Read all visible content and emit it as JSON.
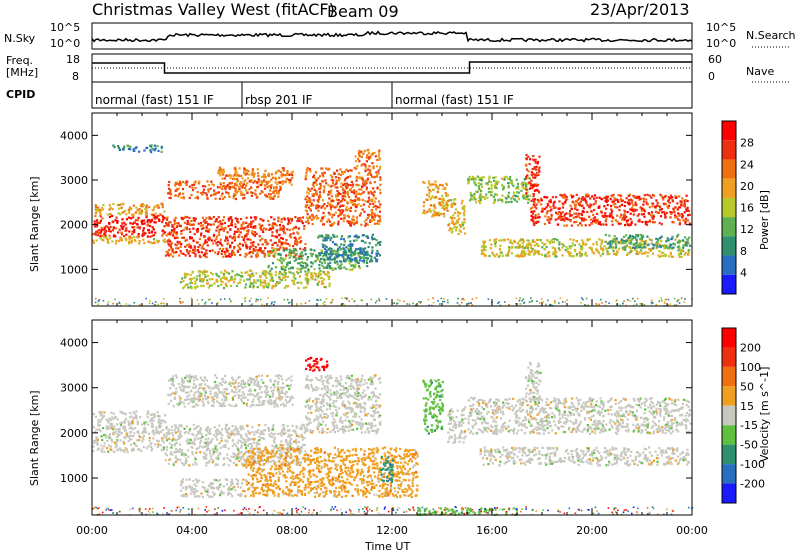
{
  "header": {
    "station": "Christmas Valley West (fitACF)",
    "beam": "Beam 09",
    "date": "23/Apr/2013"
  },
  "top_panels": {
    "nsky_label": "N.Sky",
    "nsearch_label": "N.Search",
    "nsky_ticks": [
      "10^5",
      "10^0"
    ],
    "nsearch_ticks": [
      "10^5",
      "10^0"
    ],
    "freq_label_1": "Freq.",
    "freq_label_2": "[MHz]",
    "freq_ticks": [
      "18",
      "8"
    ],
    "nave_label": "Nave",
    "nave_ticks": [
      "60",
      "0"
    ],
    "cpid_label": "CPID",
    "cpid_segments": [
      {
        "label": "normal (fast) 151 IF",
        "start_h": 0,
        "end_h": 6
      },
      {
        "label": "rbsp 201 IF",
        "start_h": 6,
        "end_h": 12
      },
      {
        "label": "normal (fast) 151 IF",
        "start_h": 12,
        "end_h": 24
      }
    ]
  },
  "chart_data": [
    {
      "type": "heatmap",
      "name": "power",
      "ylabel": "Slant Range [km]",
      "xlim": [
        0,
        24
      ],
      "ylim": [
        180,
        4500
      ],
      "yticks": [
        1000,
        2000,
        3000,
        4000
      ],
      "colorbar": {
        "label": "Power [dB]",
        "range": [
          0,
          32
        ],
        "ticks": [
          4,
          8,
          12,
          16,
          20,
          24,
          28
        ],
        "colors": [
          "#1a1aff",
          "#2a6fbf",
          "#2f8f6f",
          "#5fb050",
          "#b8c828",
          "#f0a020",
          "#f07010",
          "#ee3010",
          "#ff0000"
        ]
      },
      "bands": [
        {
          "x0": 0,
          "x1": 2.9,
          "r0": 1750,
          "r1": 2250,
          "v": 28
        },
        {
          "x0": 0,
          "x1": 2.9,
          "r0": 2250,
          "r1": 2500,
          "v": 20
        },
        {
          "x0": 0,
          "x1": 2.9,
          "r0": 1600,
          "r1": 1750,
          "v": 18
        },
        {
          "x0": 0.8,
          "x1": 2.9,
          "r0": 3650,
          "r1": 3800,
          "v": 8
        },
        {
          "x0": 2.9,
          "x1": 8.5,
          "r0": 1300,
          "r1": 2200,
          "v": 26
        },
        {
          "x0": 3.0,
          "x1": 7.5,
          "r0": 2600,
          "r1": 3000,
          "v": 24
        },
        {
          "x0": 5.0,
          "x1": 8.0,
          "r0": 2900,
          "r1": 3300,
          "v": 22
        },
        {
          "x0": 3.5,
          "x1": 9.5,
          "r0": 600,
          "r1": 1000,
          "v": 16
        },
        {
          "x0": 7.0,
          "x1": 11.0,
          "r0": 1000,
          "r1": 1500,
          "v": 12
        },
        {
          "x0": 8.5,
          "x1": 11.5,
          "r0": 2000,
          "r1": 3300,
          "v": 24
        },
        {
          "x0": 10.5,
          "x1": 11.5,
          "r0": 3300,
          "r1": 3700,
          "v": 22
        },
        {
          "x0": 9.0,
          "x1": 11.5,
          "r0": 1200,
          "r1": 1800,
          "v": 8
        },
        {
          "x0": 13.2,
          "x1": 14.2,
          "r0": 2200,
          "r1": 3000,
          "v": 20
        },
        {
          "x0": 14.2,
          "x1": 14.9,
          "r0": 1800,
          "r1": 2600,
          "v": 18
        },
        {
          "x0": 15.0,
          "x1": 17.5,
          "r0": 2500,
          "r1": 3100,
          "v": 14
        },
        {
          "x0": 17.5,
          "x1": 23.9,
          "r0": 2000,
          "r1": 2700,
          "v": 27
        },
        {
          "x0": 17.3,
          "x1": 17.9,
          "r0": 2700,
          "r1": 3600,
          "v": 28
        },
        {
          "x0": 15.5,
          "x1": 23.9,
          "r0": 1300,
          "r1": 1700,
          "v": 17
        },
        {
          "x0": 20.5,
          "x1": 23.9,
          "r0": 1500,
          "r1": 1800,
          "v": 10
        }
      ]
    },
    {
      "type": "heatmap",
      "name": "velocity",
      "ylabel": "Slant Range [km]",
      "xlabel": "Time UT",
      "xlim": [
        0,
        24
      ],
      "ylim": [
        180,
        4500
      ],
      "yticks": [
        1000,
        2000,
        3000,
        4000
      ],
      "xticks": [
        "00:00",
        "04:00",
        "08:00",
        "12:00",
        "16:00",
        "20:00",
        "00:00"
      ],
      "colorbar": {
        "label": "Velocity [m s^-1]",
        "ticks": [
          "200",
          "100",
          "50",
          "15",
          "-15",
          "-50",
          "-100",
          "-200"
        ],
        "colors": [
          "#1a1aff",
          "#2a6fbf",
          "#2f8f6f",
          "#5fc040",
          "#c8c8c0",
          "#f0a020",
          "#f07010",
          "#ee3010",
          "#ff0000"
        ]
      },
      "bands": [
        {
          "x0": 0,
          "x1": 2.9,
          "r0": 1600,
          "r1": 2500,
          "c": 4
        },
        {
          "x0": 2.9,
          "x1": 8.5,
          "r0": 1300,
          "r1": 2200,
          "c": 4
        },
        {
          "x0": 3.0,
          "x1": 8.0,
          "r0": 2600,
          "r1": 3300,
          "c": 4
        },
        {
          "x0": 3.5,
          "x1": 6.0,
          "r0": 600,
          "r1": 1000,
          "c": 4
        },
        {
          "x0": 6.0,
          "x1": 13.0,
          "r0": 600,
          "r1": 1700,
          "c": 5
        },
        {
          "x0": 8.5,
          "x1": 11.5,
          "r0": 2000,
          "r1": 3300,
          "c": 4
        },
        {
          "x0": 8.5,
          "x1": 9.4,
          "r0": 3400,
          "r1": 3700,
          "c": 8
        },
        {
          "x0": 11.5,
          "x1": 12.0,
          "r0": 900,
          "r1": 1500,
          "c": 2
        },
        {
          "x0": 13.2,
          "x1": 14.0,
          "r0": 2000,
          "r1": 3200,
          "c": 3
        },
        {
          "x0": 14.2,
          "x1": 14.9,
          "r0": 1800,
          "r1": 2600,
          "c": 4
        },
        {
          "x0": 15.0,
          "x1": 23.9,
          "r0": 2000,
          "r1": 2800,
          "c": 4
        },
        {
          "x0": 17.3,
          "x1": 17.9,
          "r0": 2700,
          "r1": 3600,
          "c": 4
        },
        {
          "x0": 15.5,
          "x1": 23.9,
          "r0": 1300,
          "r1": 1700,
          "c": 4
        },
        {
          "x0": 13.0,
          "x1": 17.0,
          "r0": 200,
          "r1": 350,
          "c": 3
        }
      ]
    }
  ]
}
